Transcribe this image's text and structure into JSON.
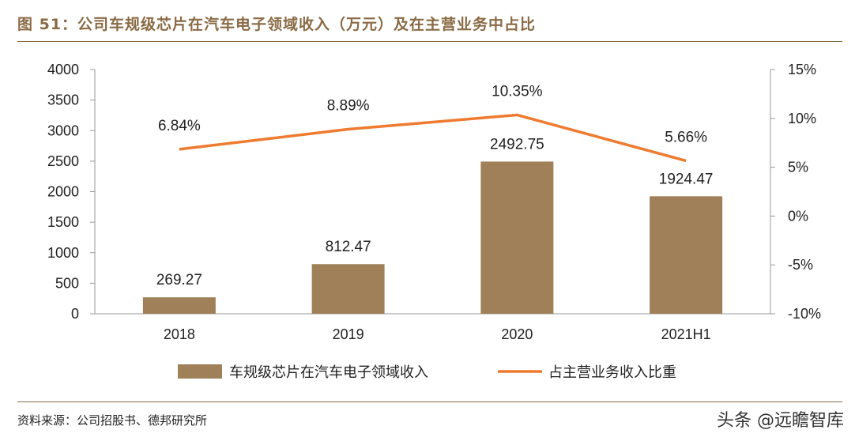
{
  "figure_title": "图 51：公司车规级芯片在汽车电子领域收入（万元）及在主营业务中占比",
  "source": "资料来源：公司招股书、德邦研究所",
  "watermark": "头条 @远瞻智库",
  "colors": {
    "bar": "#a08058",
    "line": "#ee7b30",
    "accent": "#8a6a44"
  },
  "chart_data": {
    "type": "bar",
    "title": "公司车规级芯片在汽车电子领域收入（万元）及在主营业务中占比",
    "categories": [
      "2018",
      "2019",
      "2020",
      "2021H1"
    ],
    "series": [
      {
        "name": "车规级芯片在汽车电子领域收入",
        "type": "bar",
        "axis": "left",
        "values": [
          269.27,
          812.47,
          2492.75,
          1924.47
        ],
        "labels": [
          "269.27",
          "812.47",
          "2492.75",
          "1924.47"
        ]
      },
      {
        "name": "占主营业务收入比重",
        "type": "line",
        "axis": "right",
        "values": [
          6.84,
          8.89,
          10.35,
          5.66
        ],
        "labels": [
          "6.84%",
          "8.89%",
          "10.35%",
          "5.66%"
        ]
      }
    ],
    "y_left": {
      "min": 0,
      "max": 4000,
      "ticks": [
        "0",
        "500",
        "1000",
        "1500",
        "2000",
        "2500",
        "3000",
        "3500",
        "4000"
      ]
    },
    "y_right": {
      "min": -10,
      "max": 15,
      "ticks": [
        "-10%",
        "-5%",
        "0%",
        "5%",
        "10%",
        "15%"
      ]
    },
    "legend_position": "bottom",
    "grid": false
  }
}
